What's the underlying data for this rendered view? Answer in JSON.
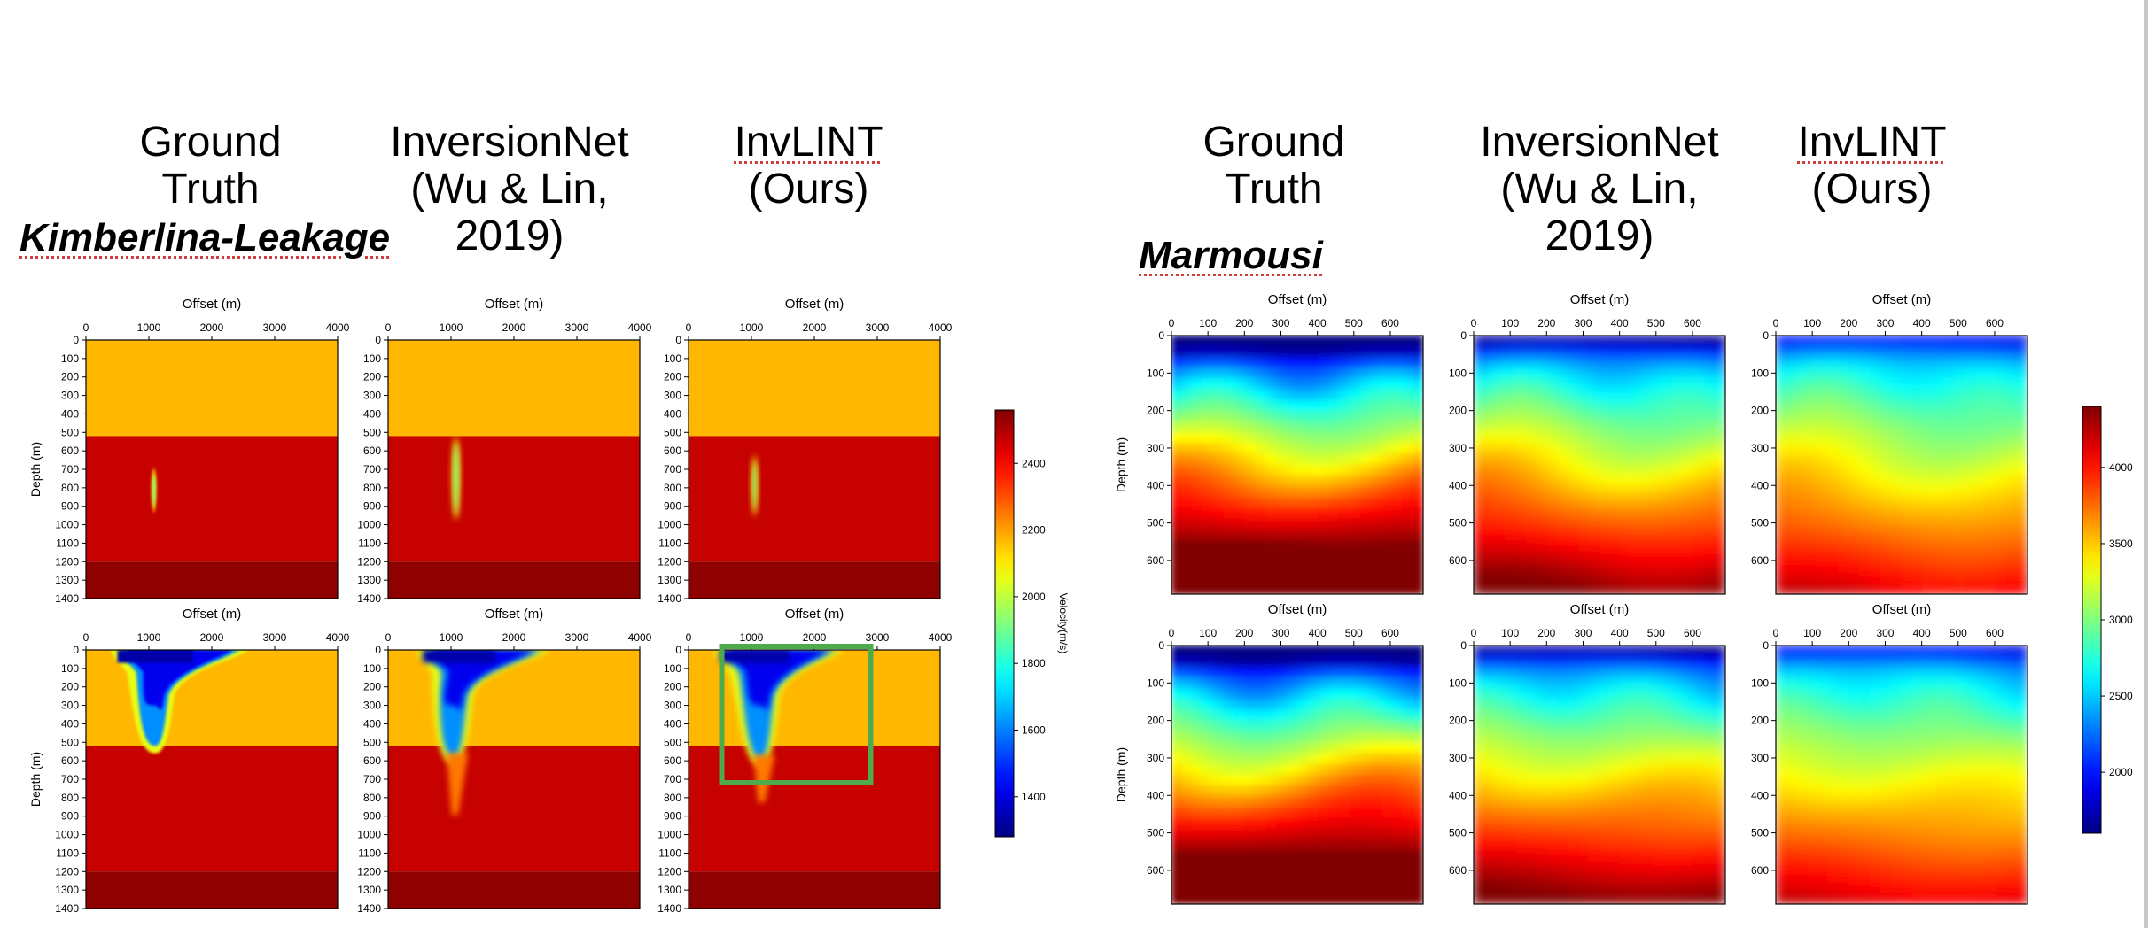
{
  "slide": {
    "kim_titles": [
      "Ground\nTruth",
      "InversionNet\n(Wu & Lin,\n2019)",
      "InvLINT\n(Ours)"
    ],
    "mar_titles": [
      "Ground\nTruth",
      "InversionNet\n(Wu & Lin,\n2019)",
      "InvLINT\n(Ours)"
    ],
    "kim_dataset": "Kimberlina-Leakage",
    "mar_dataset": "Marmousi"
  },
  "chart_data": [
    {
      "type": "heatmap",
      "name": "Kimberlina-Leakage",
      "xlabel": "Offset (m)",
      "ylabel": "Depth (m)",
      "xticks": [
        0,
        1000,
        2000,
        3000,
        4000
      ],
      "yticks": [
        0,
        100,
        200,
        300,
        400,
        500,
        600,
        700,
        800,
        900,
        1000,
        1100,
        1200,
        1300,
        1400
      ],
      "xlim": [
        0,
        4000
      ],
      "ylim": [
        0,
        1400
      ],
      "colorbar": {
        "label": "Velocity(m/s)",
        "ticks": [
          1400,
          1600,
          1800,
          2000,
          2200,
          2400
        ],
        "range": [
          1280,
          2560
        ]
      },
      "layers": [
        {
          "top": 0,
          "bottom": 520,
          "velocity": 2170
        },
        {
          "top": 520,
          "bottom": 1200,
          "velocity": 2470
        },
        {
          "top": 1200,
          "bottom": 1400,
          "velocity": 2540
        }
      ],
      "columns": [
        "Ground Truth",
        "InversionNet",
        "InvLINT"
      ],
      "rows": 2,
      "highlight": {
        "row": 2,
        "column": "InvLINT",
        "x": [
          500,
          2500
        ],
        "y": [
          0,
          700
        ],
        "color": "#4daa4d"
      }
    },
    {
      "type": "heatmap",
      "name": "Marmousi",
      "xlabel": "Offset (m)",
      "ylabel": "Depth (m)",
      "xticks": [
        0,
        100,
        200,
        300,
        400,
        500,
        600
      ],
      "yticks": [
        0,
        100,
        200,
        300,
        400,
        500,
        600
      ],
      "xlim": [
        0,
        690
      ],
      "ylim": [
        0,
        690
      ],
      "colorbar": {
        "label": "Velocity(m/s)",
        "ticks": [
          2000,
          2500,
          3000,
          3500,
          4000
        ],
        "range": [
          1600,
          4400
        ]
      },
      "columns": [
        "Ground Truth",
        "InversionNet",
        "InvLINT"
      ],
      "rows": 2
    }
  ],
  "colors": {
    "highlight": "#4daa4d",
    "underline": "#d23c3c",
    "low": "#0000ff",
    "high": "#d62a1e"
  }
}
